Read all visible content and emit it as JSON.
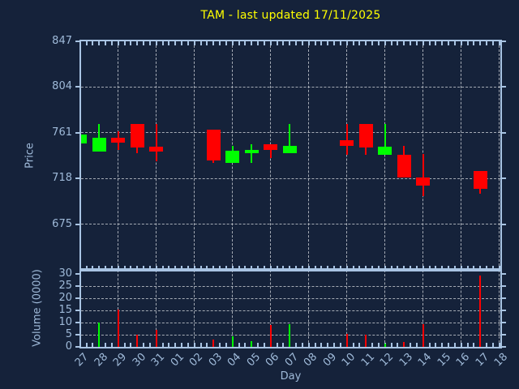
{
  "title": "TAM - last updated 17/11/2025",
  "colors": {
    "background": "#15223A",
    "spine": "#A9C4E3",
    "tick_label": "#9FBAD9",
    "grid": "#C9CED4",
    "title": "#FFFF00",
    "up": "#00FF00",
    "down": "#FF0000"
  },
  "price_axis": {
    "label": "Price",
    "ticks": [
      847,
      804,
      761,
      718,
      675
    ]
  },
  "volume_axis": {
    "label": "Volume (0000)",
    "ticks": [
      30,
      25,
      20,
      15,
      10,
      5,
      0
    ]
  },
  "x_axis": {
    "label": "Day",
    "tick_labels": [
      "27",
      "28",
      "29",
      "30",
      "31",
      "01",
      "02",
      "03",
      "04",
      "05",
      "06",
      "07",
      "08",
      "09",
      "10",
      "11",
      "12",
      "13",
      "14",
      "15",
      "16",
      "17",
      "18"
    ]
  },
  "chart_data": {
    "type": "candlestick",
    "title": "TAM - last updated 17/11/2025",
    "xlabel": "Day",
    "ylabel_price": "Price",
    "ylabel_volume": "Volume (0000)",
    "price_ylim": [
      632,
      847
    ],
    "volume_ylim": [
      0,
      31.7
    ],
    "grid": "dashed light gridlines; horizontal at axis ticks, vertical every 2nd day",
    "legend": "none",
    "up_color": "#00FF00",
    "down_color": "#FF0000",
    "days": [
      {
        "label": "27",
        "open": 751,
        "high": 759,
        "low": 751,
        "close": 759,
        "volume": null
      },
      {
        "label": "28",
        "open": 743,
        "high": 769,
        "low": 743,
        "close": 756,
        "volume": 10
      },
      {
        "label": "29",
        "open": 756,
        "high": 762,
        "low": 745,
        "close": 752,
        "volume": 15.5
      },
      {
        "label": "30",
        "open": 769,
        "high": 769,
        "low": 742,
        "close": 747,
        "volume": 5
      },
      {
        "label": "31",
        "open": 748,
        "high": 769,
        "low": 734,
        "close": 743,
        "volume": 7
      },
      {
        "label": "01",
        "open": null,
        "high": null,
        "low": null,
        "close": null,
        "volume": null
      },
      {
        "label": "02",
        "open": null,
        "high": null,
        "low": null,
        "close": null,
        "volume": null
      },
      {
        "label": "03",
        "open": 764,
        "high": 764,
        "low": 733,
        "close": 735,
        "volume": 3
      },
      {
        "label": "04",
        "open": 733,
        "high": 749,
        "low": 733,
        "close": 744,
        "volume": 4.5
      },
      {
        "label": "05",
        "open": 742,
        "high": 750,
        "low": 733,
        "close": 745,
        "volume": 2.5
      },
      {
        "label": "06",
        "open": 750,
        "high": 750,
        "low": 737,
        "close": 745,
        "volume": 9
      },
      {
        "label": "07",
        "open": 742,
        "high": 769,
        "low": 742,
        "close": 749,
        "volume": 9.5
      },
      {
        "label": "08",
        "open": null,
        "high": null,
        "low": null,
        "close": null,
        "volume": null
      },
      {
        "label": "09",
        "open": null,
        "high": null,
        "low": null,
        "close": null,
        "volume": null
      },
      {
        "label": "10",
        "open": 754,
        "high": 769,
        "low": 740,
        "close": 749,
        "volume": 5.5
      },
      {
        "label": "11",
        "open": 769,
        "high": 769,
        "low": 740,
        "close": 747,
        "volume": 5
      },
      {
        "label": "12",
        "open": 740,
        "high": 769,
        "low": 740,
        "close": 748,
        "volume": 1.5
      },
      {
        "label": "13",
        "open": 740,
        "high": 749,
        "low": 719,
        "close": 719,
        "volume": 2
      },
      {
        "label": "14",
        "open": 719,
        "high": 741,
        "low": 701,
        "close": 711,
        "volume": 9.5
      },
      {
        "label": "15",
        "open": null,
        "high": null,
        "low": null,
        "close": null,
        "volume": null
      },
      {
        "label": "16",
        "open": null,
        "high": null,
        "low": null,
        "close": null,
        "volume": null
      },
      {
        "label": "17",
        "open": 725,
        "high": 725,
        "low": 704,
        "close": 708,
        "volume": 29.5
      },
      {
        "label": "18",
        "open": null,
        "high": null,
        "low": null,
        "close": null,
        "volume": null
      }
    ]
  }
}
